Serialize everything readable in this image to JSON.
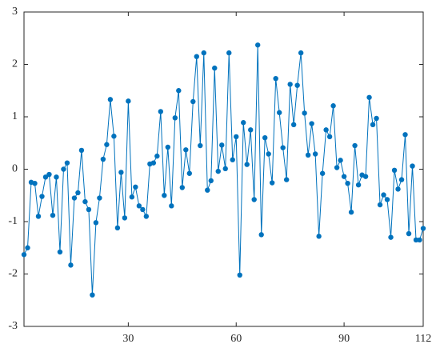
{
  "chart_data": {
    "type": "line",
    "x": [
      1,
      2,
      3,
      4,
      5,
      6,
      7,
      8,
      9,
      10,
      11,
      12,
      13,
      14,
      15,
      16,
      17,
      18,
      19,
      20,
      21,
      22,
      23,
      24,
      25,
      26,
      27,
      28,
      29,
      30,
      31,
      32,
      33,
      34,
      35,
      36,
      37,
      38,
      39,
      40,
      41,
      42,
      43,
      44,
      45,
      46,
      47,
      48,
      49,
      50,
      51,
      52,
      53,
      54,
      55,
      56,
      57,
      58,
      59,
      60,
      61,
      62,
      63,
      64,
      65,
      66,
      67,
      68,
      69,
      70,
      71,
      72,
      73,
      74,
      75,
      76,
      77,
      78,
      79,
      80,
      81,
      82,
      83,
      84,
      85,
      86,
      87,
      88,
      89,
      90,
      91,
      92,
      93,
      94,
      95,
      96,
      97,
      98,
      99,
      100,
      101,
      102,
      103,
      104,
      105,
      106,
      107,
      108,
      109,
      110,
      111,
      112
    ],
    "series": [
      {
        "color": "#0072bd",
        "values": [
          -1.63,
          -1.5,
          -0.25,
          -0.27,
          -0.9,
          -0.52,
          -0.15,
          -0.1,
          -0.88,
          -0.15,
          -1.58,
          0.0,
          0.12,
          -1.83,
          -0.55,
          -0.45,
          0.36,
          -0.62,
          -0.77,
          -2.4,
          -1.02,
          -0.55,
          0.19,
          0.47,
          1.33,
          0.63,
          -1.12,
          -0.06,
          -0.93,
          1.3,
          -0.53,
          -0.34,
          -0.7,
          -0.77,
          -0.9,
          0.1,
          0.12,
          0.25,
          1.1,
          -0.5,
          0.42,
          -0.7,
          0.98,
          1.5,
          -0.35,
          0.37,
          -0.08,
          1.29,
          2.15,
          0.45,
          2.22,
          -0.4,
          -0.22,
          1.93,
          -0.04,
          0.46,
          0.01,
          2.22,
          0.18,
          0.62,
          -2.02,
          0.89,
          0.09,
          0.75,
          -0.58,
          2.37,
          -1.25,
          0.6,
          0.29,
          -0.26,
          1.73,
          1.08,
          0.41,
          -0.2,
          1.62,
          0.85,
          1.6,
          2.22,
          1.07,
          0.27,
          0.87,
          0.29,
          -1.28,
          -0.08,
          0.75,
          0.62,
          1.21,
          0.03,
          0.17,
          -0.14,
          -0.27,
          -0.82,
          0.45,
          -0.3,
          -0.11,
          -0.14,
          1.37,
          0.85,
          0.97,
          -0.68,
          -0.49,
          -0.58,
          -1.3,
          -0.02,
          -0.38,
          -0.2,
          0.66,
          -1.23,
          0.06,
          -1.35,
          -1.35,
          -1.13
        ]
      }
    ],
    "xlim": [
      1,
      112
    ],
    "xticks": [
      30,
      60,
      90,
      112
    ],
    "ylim": [
      -3,
      3
    ],
    "yticks": [
      -3,
      -2,
      -1,
      0,
      1,
      2,
      3
    ]
  }
}
